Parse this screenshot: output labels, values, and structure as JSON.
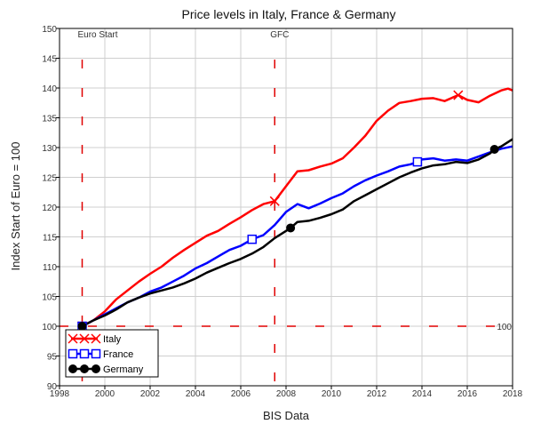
{
  "chart_data": {
    "type": "line",
    "title": "Price levels in Italy, France & Germany",
    "xlabel": "BIS Data",
    "ylabel": "Index Start of Euro = 100",
    "xlim": [
      1998,
      2018
    ],
    "ylim": [
      90,
      150
    ],
    "x_ticks": [
      1998,
      2000,
      2002,
      2004,
      2006,
      2008,
      2010,
      2012,
      2014,
      2016,
      2018
    ],
    "y_ticks": [
      90,
      95,
      100,
      105,
      110,
      115,
      120,
      125,
      130,
      135,
      140,
      145,
      150
    ],
    "grid": true,
    "legend_position": "bottom-left",
    "reference_lines": [
      {
        "axis": "x",
        "value": 1999.0,
        "label": "Euro Start",
        "color": "#e00000"
      },
      {
        "axis": "x",
        "value": 2007.5,
        "label": "GFC",
        "color": "#e00000"
      },
      {
        "axis": "y",
        "value": 100,
        "label": "100",
        "color": "#e00000"
      }
    ],
    "series": [
      {
        "name": "Italy",
        "color": "#ff0000",
        "marker": "x",
        "marker_points": [
          [
            1999.0,
            100
          ],
          [
            2007.5,
            121
          ],
          [
            2015.6,
            138.8
          ]
        ],
        "points": [
          [
            1999.0,
            100
          ],
          [
            1999.5,
            101
          ],
          [
            2000.0,
            102.5
          ],
          [
            2000.5,
            104.5
          ],
          [
            2001.0,
            106
          ],
          [
            2001.5,
            107.5
          ],
          [
            2002.0,
            108.8
          ],
          [
            2002.5,
            110
          ],
          [
            2003.0,
            111.5
          ],
          [
            2003.5,
            112.8
          ],
          [
            2004.0,
            114
          ],
          [
            2004.5,
            115.2
          ],
          [
            2005.0,
            116
          ],
          [
            2005.5,
            117.2
          ],
          [
            2006.0,
            118.3
          ],
          [
            2006.5,
            119.5
          ],
          [
            2007.0,
            120.5
          ],
          [
            2007.5,
            121
          ],
          [
            2008.0,
            123.5
          ],
          [
            2008.5,
            126
          ],
          [
            2009.0,
            126.2
          ],
          [
            2009.5,
            126.8
          ],
          [
            2010.0,
            127.3
          ],
          [
            2010.5,
            128.2
          ],
          [
            2011.0,
            130
          ],
          [
            2011.5,
            132
          ],
          [
            2012.0,
            134.5
          ],
          [
            2012.5,
            136.2
          ],
          [
            2013.0,
            137.5
          ],
          [
            2013.5,
            137.8
          ],
          [
            2014.0,
            138.2
          ],
          [
            2014.5,
            138.3
          ],
          [
            2015.0,
            137.8
          ],
          [
            2015.6,
            138.8
          ],
          [
            2016.0,
            138
          ],
          [
            2016.5,
            137.6
          ],
          [
            2017.0,
            138.7
          ],
          [
            2017.5,
            139.6
          ],
          [
            2017.8,
            139.9
          ],
          [
            2018.0,
            139.6
          ]
        ]
      },
      {
        "name": "France",
        "color": "#0000ff",
        "marker": "square",
        "marker_points": [
          [
            1999.0,
            100
          ],
          [
            2006.5,
            114.6
          ],
          [
            2013.8,
            127.6
          ]
        ],
        "points": [
          [
            1999.0,
            100
          ],
          [
            1999.5,
            101
          ],
          [
            2000.0,
            102
          ],
          [
            2000.5,
            103
          ],
          [
            2001.0,
            104
          ],
          [
            2001.5,
            104.8
          ],
          [
            2002.0,
            105.8
          ],
          [
            2002.5,
            106.5
          ],
          [
            2003.0,
            107.5
          ],
          [
            2003.5,
            108.5
          ],
          [
            2004.0,
            109.7
          ],
          [
            2004.5,
            110.6
          ],
          [
            2005.0,
            111.7
          ],
          [
            2005.5,
            112.8
          ],
          [
            2006.0,
            113.5
          ],
          [
            2006.5,
            114.6
          ],
          [
            2007.0,
            115.3
          ],
          [
            2007.5,
            117
          ],
          [
            2008.0,
            119.2
          ],
          [
            2008.5,
            120.5
          ],
          [
            2009.0,
            119.8
          ],
          [
            2009.5,
            120.6
          ],
          [
            2010.0,
            121.5
          ],
          [
            2010.5,
            122.3
          ],
          [
            2011.0,
            123.5
          ],
          [
            2011.5,
            124.5
          ],
          [
            2012.0,
            125.3
          ],
          [
            2012.5,
            126
          ],
          [
            2013.0,
            126.8
          ],
          [
            2013.5,
            127.2
          ],
          [
            2013.8,
            127.6
          ],
          [
            2014.0,
            128
          ],
          [
            2014.5,
            128.2
          ],
          [
            2015.0,
            127.8
          ],
          [
            2015.5,
            128
          ],
          [
            2016.0,
            127.8
          ],
          [
            2016.5,
            128.5
          ],
          [
            2017.0,
            129.2
          ],
          [
            2017.5,
            129.8
          ],
          [
            2018.0,
            130.2
          ]
        ]
      },
      {
        "name": "Germany",
        "color": "#000000",
        "marker": "circle",
        "marker_points": [
          [
            1999.0,
            100
          ],
          [
            2008.2,
            116.5
          ],
          [
            2017.2,
            129.7
          ]
        ],
        "points": [
          [
            1999.0,
            100
          ],
          [
            1999.5,
            101
          ],
          [
            2000.0,
            101.8
          ],
          [
            2000.5,
            102.8
          ],
          [
            2001.0,
            104
          ],
          [
            2001.5,
            104.8
          ],
          [
            2002.0,
            105.5
          ],
          [
            2002.5,
            106
          ],
          [
            2003.0,
            106.5
          ],
          [
            2003.5,
            107.2
          ],
          [
            2004.0,
            108
          ],
          [
            2004.5,
            109
          ],
          [
            2005.0,
            109.8
          ],
          [
            2005.5,
            110.6
          ],
          [
            2006.0,
            111.3
          ],
          [
            2006.5,
            112.2
          ],
          [
            2007.0,
            113.3
          ],
          [
            2007.5,
            114.8
          ],
          [
            2008.0,
            116
          ],
          [
            2008.2,
            116.5
          ],
          [
            2008.5,
            117.5
          ],
          [
            2009.0,
            117.7
          ],
          [
            2009.5,
            118.2
          ],
          [
            2010.0,
            118.8
          ],
          [
            2010.5,
            119.6
          ],
          [
            2011.0,
            121
          ],
          [
            2011.5,
            122
          ],
          [
            2012.0,
            123
          ],
          [
            2012.5,
            124
          ],
          [
            2013.0,
            125
          ],
          [
            2013.5,
            125.8
          ],
          [
            2014.0,
            126.5
          ],
          [
            2014.5,
            127
          ],
          [
            2015.0,
            127.2
          ],
          [
            2015.5,
            127.6
          ],
          [
            2016.0,
            127.4
          ],
          [
            2016.5,
            128
          ],
          [
            2017.0,
            129
          ],
          [
            2017.2,
            129.7
          ],
          [
            2017.5,
            130.2
          ],
          [
            2018.0,
            131.4
          ]
        ]
      }
    ]
  }
}
